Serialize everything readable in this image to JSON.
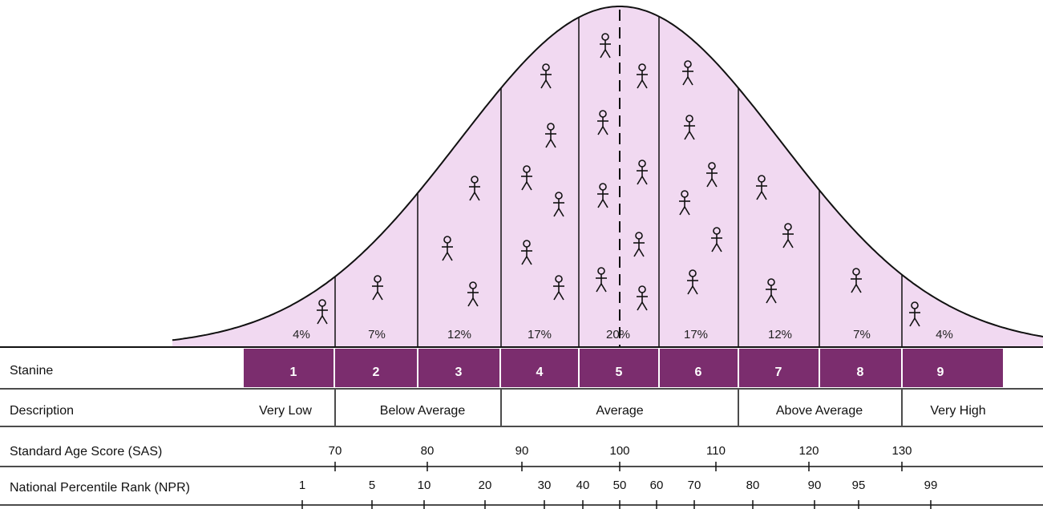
{
  "colors": {
    "curve_fill": "#f1d9f1",
    "stanine_band": "#7b2d6e",
    "stanine_text": "#ffffff",
    "line": "#111111"
  },
  "stanines": [
    {
      "number": "1",
      "percent": "4%",
      "people": 1
    },
    {
      "number": "2",
      "percent": "7%",
      "people": 1
    },
    {
      "number": "3",
      "percent": "12%",
      "people": 3
    },
    {
      "number": "4",
      "percent": "17%",
      "people": 6
    },
    {
      "number": "5",
      "percent": "20%",
      "people": 8
    },
    {
      "number": "6",
      "percent": "17%",
      "people": 6
    },
    {
      "number": "7",
      "percent": "12%",
      "people": 3
    },
    {
      "number": "8",
      "percent": "7%",
      "people": 1
    },
    {
      "number": "9",
      "percent": "4%",
      "people": 1
    }
  ],
  "rows": {
    "stanine": "Stanine",
    "description": "Description",
    "sas": "Standard Age Score (SAS)",
    "npr": "National Percentile Rank (NPR)"
  },
  "descriptions": [
    "Very Low",
    "Below Average",
    "Average",
    "Above Average",
    "Very High"
  ],
  "sas_ticks": [
    "70",
    "80",
    "90",
    "100",
    "110",
    "120",
    "130"
  ],
  "npr_ticks": [
    "1",
    "5",
    "10",
    "20",
    "30",
    "40",
    "50",
    "60",
    "70",
    "80",
    "90",
    "95",
    "99"
  ]
}
